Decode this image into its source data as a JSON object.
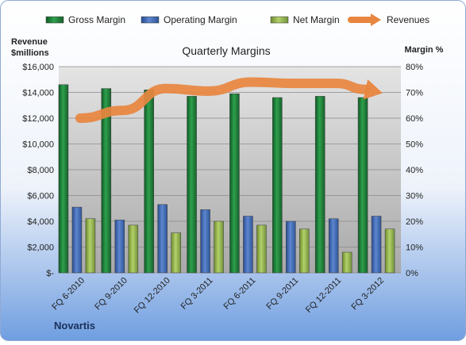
{
  "chart_data": {
    "type": "bar",
    "title": "Quarterly Margins",
    "company": "Novartis",
    "left_axis": {
      "title_lines": [
        "Revenue",
        "$millions"
      ],
      "ylim": [
        0,
        16000
      ],
      "ticks": [
        "$-",
        "$2,000",
        "$4,000",
        "$6,000",
        "$8,000",
        "$10,000",
        "$12,000",
        "$14,000",
        "$16,000"
      ]
    },
    "right_axis": {
      "title": "Margin %",
      "ylim": [
        0,
        80
      ],
      "ticks": [
        "0%",
        "10%",
        "20%",
        "30%",
        "40%",
        "50%",
        "60%",
        "70%",
        "80%"
      ]
    },
    "categories": [
      "FQ 6-2010",
      "FQ 9-2010",
      "FQ 12-2010",
      "FQ 3-2011",
      "FQ 6-2011",
      "FQ 9-2011",
      "FQ 12-2011",
      "FQ 3-2012"
    ],
    "legend_position": "top",
    "grid": true,
    "series": [
      {
        "name": "Gross Margin",
        "axis": "right",
        "color": "#1f7a3a",
        "values": [
          73,
          71.5,
          71,
          68.5,
          69.5,
          68,
          68.5,
          68
        ]
      },
      {
        "name": "Operating Margin",
        "axis": "right",
        "color": "#3f66b0",
        "values": [
          25.5,
          20.5,
          26.5,
          24.5,
          22,
          20,
          21,
          22
        ]
      },
      {
        "name": "Net Margin",
        "axis": "right",
        "color": "#8db04a",
        "values": [
          21,
          18.5,
          15.5,
          20,
          18.5,
          17,
          8,
          17
        ]
      },
      {
        "name": "Revenues",
        "axis": "left",
        "type": "line",
        "color": "#e8853f",
        "values": [
          12000,
          12600,
          14300,
          14100,
          14800,
          14700,
          14700,
          14000
        ]
      }
    ]
  }
}
